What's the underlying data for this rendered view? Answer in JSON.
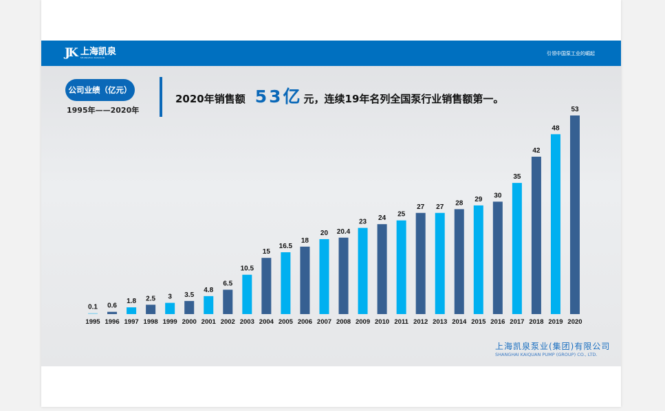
{
  "header": {
    "logo_mark": "JK",
    "logo_cn": "上海凯泉",
    "logo_en": "SHANGHAI KAIQUAN",
    "tagline": "引领中国泵工业的崛起"
  },
  "section": {
    "pill": "公司业绩（亿元）",
    "range": "1995年——2020年"
  },
  "headline": {
    "prefix": "2020年销售额",
    "highlight": "53亿",
    "suffix": "元，连续19年名列全国泵行业销售额第一。"
  },
  "company": {
    "cn": "上海凯泉泵业(集团)有限公司",
    "en": "SHANGHAI KAIQUAN PUMP (GROUP) CO., LTD."
  },
  "chart_data": {
    "type": "bar",
    "title": "",
    "xlabel": "",
    "ylabel": "",
    "categories": [
      "1995",
      "1996",
      "1997",
      "1998",
      "1999",
      "2000",
      "2001",
      "2002",
      "2003",
      "2004",
      "2005",
      "2006",
      "2007",
      "2008",
      "2009",
      "2010",
      "2011",
      "2012",
      "2013",
      "2014",
      "2015",
      "2016",
      "2017",
      "2018",
      "2019",
      "2020"
    ],
    "values": [
      0.1,
      0.6,
      1.8,
      2.5,
      3,
      3.5,
      4.8,
      6.5,
      10.5,
      15,
      16.5,
      18,
      20,
      20.4,
      23,
      24,
      25,
      27,
      27,
      28,
      29,
      30,
      35,
      42,
      48,
      53
    ],
    "labels": [
      "0.1",
      "0.6",
      "1.8",
      "2.5",
      "3",
      "3.5",
      "4.8",
      "6.5",
      "10.5",
      "15",
      "16.5",
      "18",
      "20",
      "20.4",
      "23",
      "24",
      "25",
      "27",
      "27",
      "28",
      "29",
      "30",
      "35",
      "42",
      "48",
      "53"
    ],
    "ylim": [
      0,
      53
    ],
    "grid": false,
    "legend": "none",
    "colors": {
      "light": "#00b0f0",
      "dark": "#366092"
    }
  }
}
